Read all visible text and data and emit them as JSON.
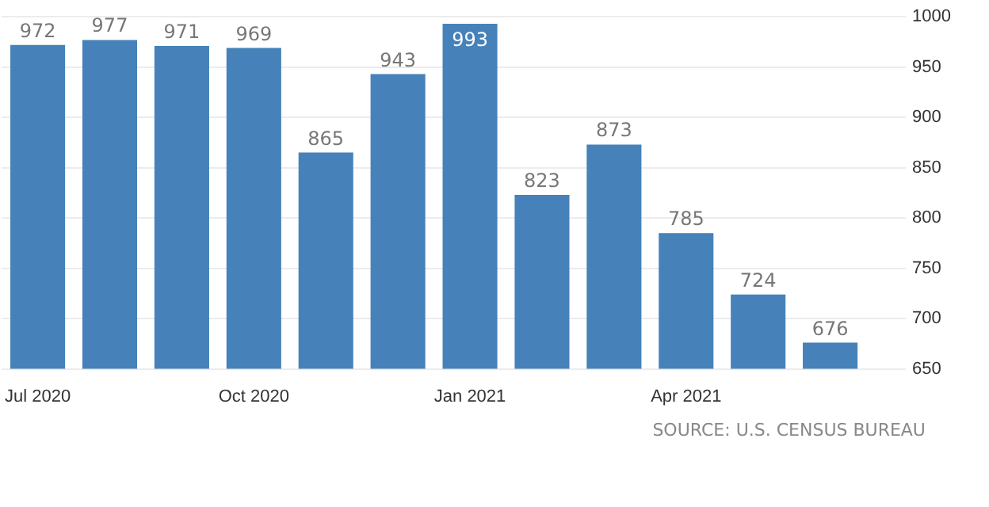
{
  "chart_data": {
    "type": "bar",
    "categories": [
      "Jul 2020",
      null,
      null,
      "Oct 2020",
      null,
      null,
      "Jan 2021",
      null,
      null,
      "Apr 2021",
      null,
      null
    ],
    "values": [
      972,
      977,
      971,
      969,
      865,
      943,
      993,
      823,
      873,
      785,
      724,
      676
    ],
    "color": "#4682b9",
    "ylim": [
      650,
      1000
    ],
    "yticks": [
      650,
      700,
      750,
      800,
      850,
      900,
      950,
      1000
    ],
    "grid": "y",
    "legend": false,
    "data_labels": true,
    "annotations": [
      "SOURCE: U.S. CENSUS BUREAU"
    ]
  }
}
